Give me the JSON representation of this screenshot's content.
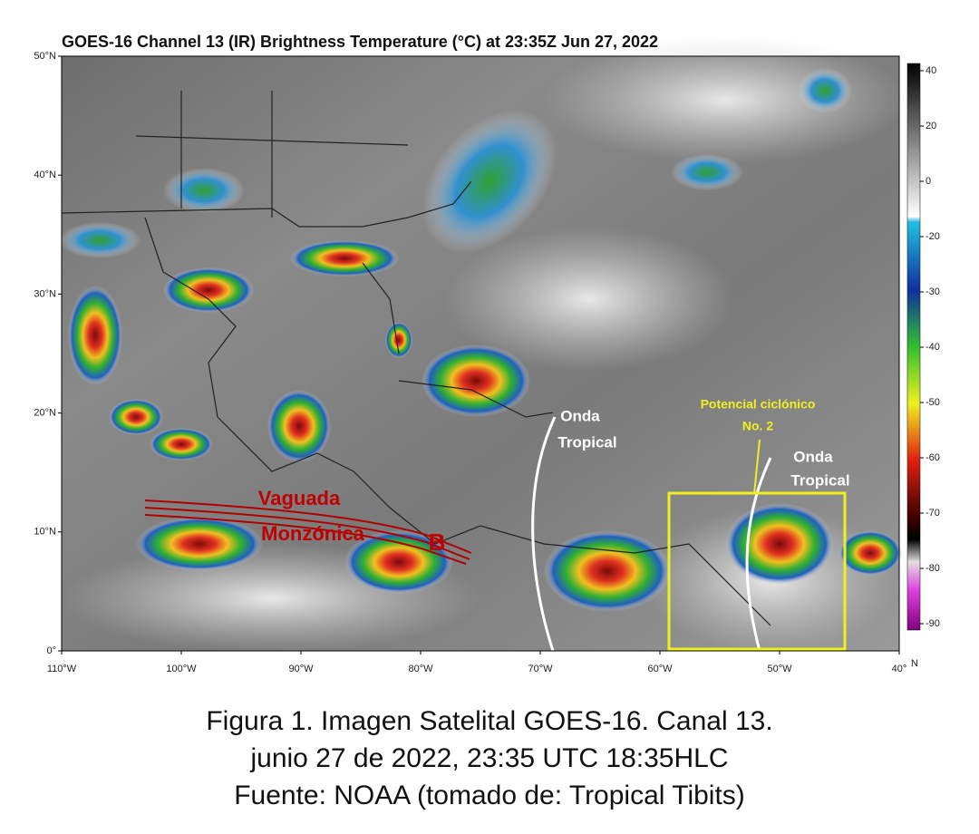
{
  "title": "GOES-16 Channel 13 (IR) Brightness Temperature (°C) at 23:35Z Jun 27, 2022",
  "map": {
    "lat_ticks": [
      {
        "value": 50,
        "label": "50°N"
      },
      {
        "value": 40,
        "label": "40°N"
      },
      {
        "value": 30,
        "label": "30°N"
      },
      {
        "value": 20,
        "label": "20°N"
      },
      {
        "value": 10,
        "label": "10°N"
      },
      {
        "value": 0,
        "label": "0°"
      }
    ],
    "lon_ticks": [
      {
        "value": -110,
        "label": "110°W"
      },
      {
        "value": -100,
        "label": "100°W"
      },
      {
        "value": -90,
        "label": "90°W"
      },
      {
        "value": -80,
        "label": "80°W"
      },
      {
        "value": -70,
        "label": "70°W"
      },
      {
        "value": -60,
        "label": "60°W"
      },
      {
        "value": -50,
        "label": "50°W"
      },
      {
        "value": -40,
        "label": "40°"
      }
    ]
  },
  "colorbar": {
    "ticks": [
      40,
      20,
      0,
      -20,
      -30,
      -40,
      -50,
      -60,
      -70,
      -80,
      -90
    ],
    "label": "N"
  },
  "annotations": {
    "vaguada": [
      "Vaguada",
      "Monzónica"
    ],
    "low": "B",
    "onda_1": [
      "Onda",
      "Tropical"
    ],
    "onda_2": [
      "Onda",
      "Tropical"
    ],
    "potencial": [
      "Potencial ciclónico",
      "No. 2"
    ]
  },
  "caption": [
    "Figura 1. Imagen Satelital GOES-16. Canal 13.",
    "junio 27 de 2022, 23:35 UTC 18:35HLC",
    "Fuente: NOAA (tomado de: Tropical Tibits)"
  ]
}
